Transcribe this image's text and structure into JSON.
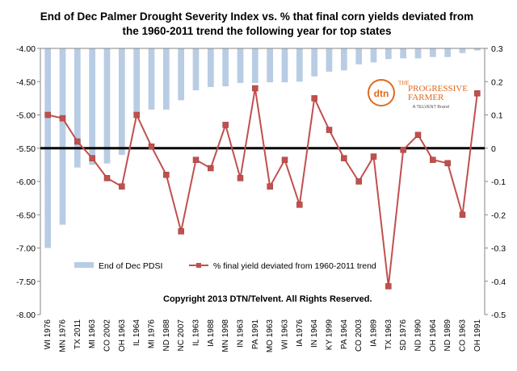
{
  "chart_data": {
    "type": "bar+line",
    "title_lines": [
      "End  of Dec Palmer Drought Severity Index vs. %  that final corn yields deviated from",
      "the 1960-2011   trend the following year for top states"
    ],
    "categories": [
      "WI 1976",
      "MN 1976",
      "TX 2011",
      "MI 1963",
      "CO 2002",
      "OH 1963",
      "IL 1964",
      "MI 1976",
      "ND 1988",
      "NC 2007",
      "IL 1963",
      "IA 1988",
      "MN 1998",
      "IN 1963",
      "PA 1991",
      "MO 1963",
      "WI 1963",
      "IA 1976",
      "IN 1964",
      "KY 1999",
      "PA 1964",
      "CO 2003",
      "IA 1989",
      "TX 1963",
      "SD 1976",
      "ND 1990",
      "OH 1964",
      "ND 1989",
      "CO 1963",
      "OH 1991"
    ],
    "series": [
      {
        "name": "End of Dec PDSI",
        "axis": "left",
        "values": [
          -7.0,
          -6.65,
          -5.79,
          -5.75,
          -5.73,
          -5.6,
          -5.0,
          -4.92,
          -4.92,
          -4.78,
          -4.63,
          -4.58,
          -4.57,
          -4.52,
          -4.52,
          -4.51,
          -4.51,
          -4.5,
          -4.42,
          -4.35,
          -4.33,
          -4.24,
          -4.21,
          -4.16,
          -4.15,
          -4.15,
          -4.13,
          -4.13,
          -4.07,
          -4.03
        ]
      },
      {
        "name": "% final yield deviated from 1960-2011 trend",
        "axis": "right",
        "values": [
          0.1,
          0.09,
          0.02,
          -0.03,
          -0.09,
          -0.115,
          0.1,
          0.005,
          -0.08,
          -0.25,
          -0.035,
          -0.06,
          0.07,
          -0.09,
          0.18,
          -0.115,
          -0.035,
          -0.17,
          0.15,
          0.055,
          -0.03,
          -0.1,
          -0.025,
          -0.415,
          -0.005,
          0.04,
          -0.035,
          -0.045,
          -0.2,
          0.165
        ]
      }
    ],
    "left_axis": {
      "min": -8.0,
      "max": -4.0,
      "step": 0.5,
      "labels": [
        "-4.00",
        "-4.50",
        "-5.00",
        "-5.50",
        "-6.00",
        "-6.50",
        "-7.00",
        "-7.50",
        "-8.00"
      ]
    },
    "right_axis": {
      "min": -0.5,
      "max": 0.3,
      "step": 0.1,
      "labels": [
        "0.3",
        "0.2",
        "0.1",
        "0",
        "-0.1",
        "-0.2",
        "-0.3",
        "-0.4",
        "-0.5"
      ]
    },
    "reference_line": {
      "axis": "right",
      "value": 0
    },
    "colors": {
      "bars": "#b8cce4",
      "line": "#c0504d",
      "reference": "#000000"
    }
  },
  "copyright": "Copyright 2013 DTN/Telvent. All Rights Reserved.",
  "logo": {
    "mark": "dtn",
    "line1": "THE",
    "line2": "PROGRESSIVE",
    "line3": "FARMER",
    "tagline": "A TELVENT Brand"
  }
}
